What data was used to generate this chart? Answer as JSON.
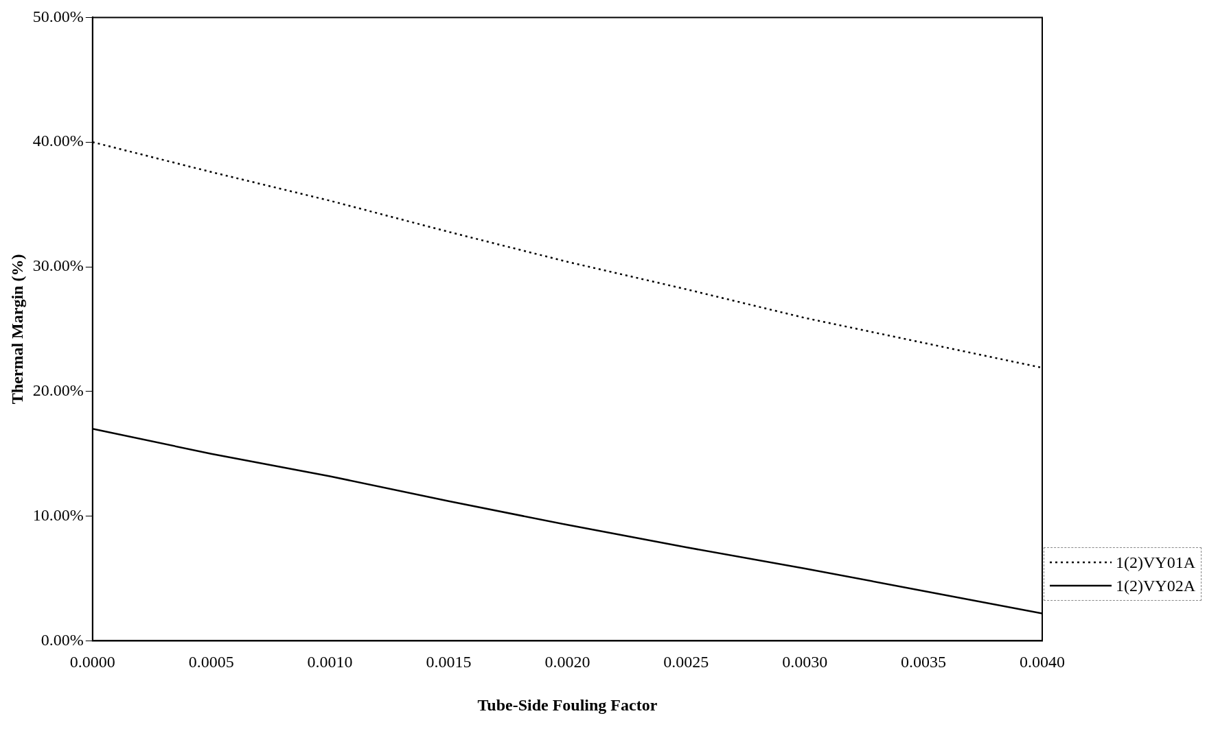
{
  "chart_data": {
    "type": "line",
    "xlabel": "Tube-Side Fouling Factor",
    "ylabel": "Thermal Margin (%)",
    "x": [
      0,
      0.0005,
      0.001,
      0.0015,
      0.002,
      0.0025,
      0.003,
      0.0035,
      0.004
    ],
    "series": [
      {
        "name": "1(2)VY01A",
        "color": "#000000",
        "line_style": "dotted",
        "values": [
          40,
          37.6,
          35.3,
          32.8,
          30.4,
          28.2,
          25.9,
          23.9,
          21.9
        ]
      },
      {
        "name": "1(2)VY02A",
        "color": "#000000",
        "line_style": "solid",
        "values": [
          17,
          15,
          13.2,
          11.2,
          9.3,
          7.5,
          5.8,
          4,
          2.2
        ]
      }
    ],
    "xlim": [
      0,
      0.004
    ],
    "xticks": [
      {
        "value": 0,
        "label": "0.0000"
      },
      {
        "value": 0.0005,
        "label": "0.0005"
      },
      {
        "value": 0.001,
        "label": "0.0010"
      },
      {
        "value": 0.0015,
        "label": "0.0015"
      },
      {
        "value": 0.002,
        "label": "0.0020"
      },
      {
        "value": 0.0025,
        "label": "0.0025"
      },
      {
        "value": 0.003,
        "label": "0.0030"
      },
      {
        "value": 0.0035,
        "label": "0.0035"
      },
      {
        "value": 0.004,
        "label": "0.0040"
      }
    ],
    "ylim": [
      0,
      50
    ],
    "yticks": [
      {
        "value": 0,
        "label": "0.00%"
      },
      {
        "value": 10,
        "label": "10.00%"
      },
      {
        "value": 20,
        "label": "20.00%"
      },
      {
        "value": 30,
        "label": "30.00%"
      },
      {
        "value": 40,
        "label": "40.00%"
      },
      {
        "value": 50,
        "label": "50.00%"
      }
    ],
    "grid": false,
    "legend": "right",
    "marker": "none"
  }
}
